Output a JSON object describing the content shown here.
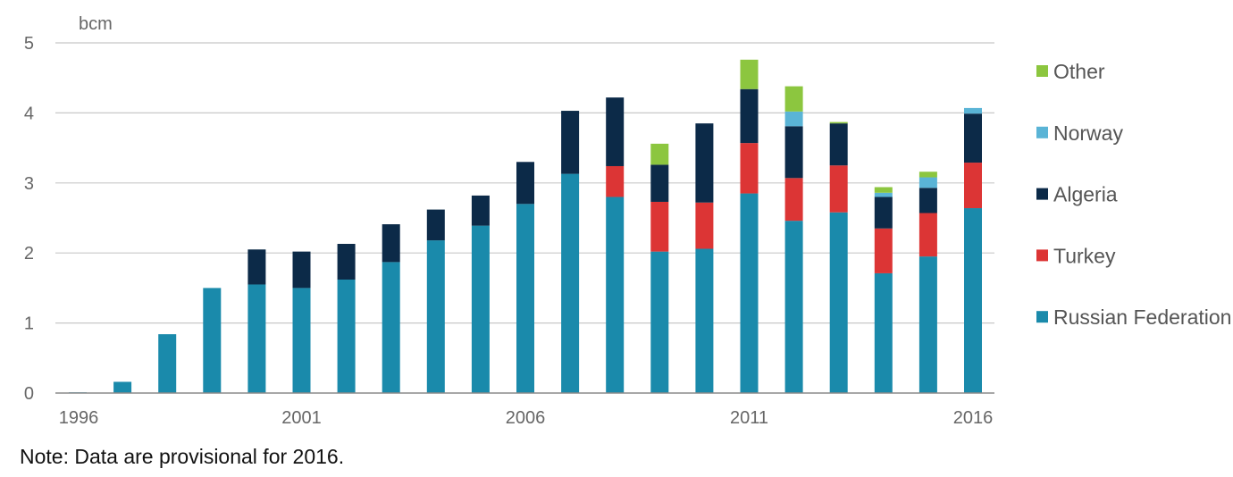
{
  "chart_data": {
    "type": "bar",
    "stacked": true,
    "ylabel": "bcm",
    "ylim": [
      0,
      5
    ],
    "yticks": [
      "0",
      "1",
      "2",
      "3",
      "4",
      "5"
    ],
    "xtick_labels": [
      "1996",
      "2001",
      "2006",
      "2011",
      "2016"
    ],
    "categories": [
      "1996",
      "1997",
      "1998",
      "1999",
      "2000",
      "2001",
      "2002",
      "2003",
      "2004",
      "2005",
      "2006",
      "2007",
      "2008",
      "2009",
      "2010",
      "2011",
      "2012",
      "2013",
      "2014",
      "2015",
      "2016"
    ],
    "grid": true,
    "legend_position": "right",
    "series": [
      {
        "name": "Russian Federation",
        "color": "#1a8aab",
        "values": [
          0.01,
          0.16,
          0.84,
          1.5,
          1.55,
          1.5,
          1.62,
          1.87,
          2.18,
          2.39,
          2.7,
          3.13,
          2.8,
          2.02,
          2.06,
          2.85,
          2.46,
          2.58,
          1.71,
          1.95,
          2.64
        ]
      },
      {
        "name": "Turkey",
        "color": "#dc3535",
        "values": [
          0,
          0,
          0,
          0,
          0,
          0,
          0,
          0,
          0,
          0,
          0,
          0,
          0.44,
          0.71,
          0.66,
          0.72,
          0.61,
          0.67,
          0.64,
          0.62,
          0.65
        ]
      },
      {
        "name": "Algeria",
        "color": "#0c2a48",
        "values": [
          0,
          0,
          0,
          0,
          0.5,
          0.52,
          0.51,
          0.54,
          0.44,
          0.43,
          0.6,
          0.9,
          0.98,
          0.53,
          1.13,
          0.77,
          0.74,
          0.6,
          0.45,
          0.36,
          0.7
        ]
      },
      {
        "name": "Norway",
        "color": "#5ab4d6",
        "values": [
          0,
          0,
          0,
          0,
          0,
          0,
          0,
          0,
          0,
          0,
          0,
          0,
          0,
          0,
          0,
          0,
          0.21,
          0,
          0.06,
          0.15,
          0.08
        ]
      },
      {
        "name": "Other",
        "color": "#8cc63f",
        "values": [
          0,
          0,
          0,
          0,
          0,
          0,
          0,
          0,
          0,
          0,
          0,
          0,
          0,
          0.3,
          0,
          0.42,
          0.36,
          0.02,
          0.08,
          0.08,
          0
        ]
      }
    ],
    "legend_order": [
      "Other",
      "Norway",
      "Algeria",
      "Turkey",
      "Russian Federation"
    ]
  },
  "note": "Note: Data are provisional for 2016."
}
